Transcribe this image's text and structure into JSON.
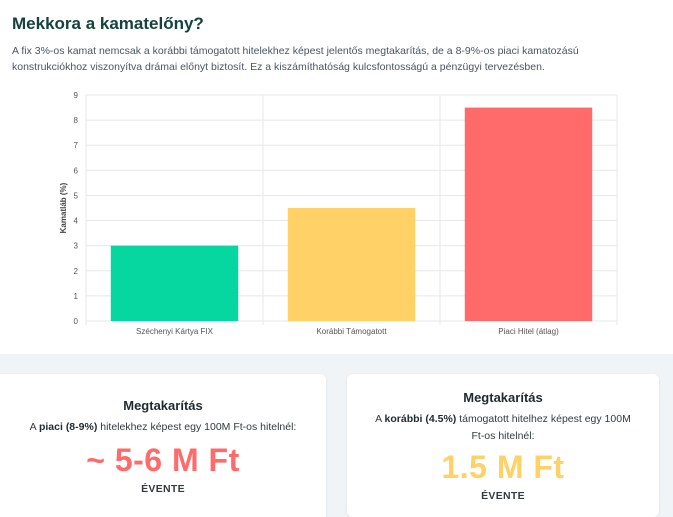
{
  "page": {
    "title": "Mekkora a kamatelőny?",
    "description": "A fix 3%-os kamat nemcsak a korábbi támogatott hitelekhez képest jelentős megtakarítás, de a 8-9%-os piaci kamatozású konstrukciókhoz viszonyítva drámai előnyt biztosít. Ez a kiszámíthatóság kulcsfontosságú a pénzügyi tervezésben."
  },
  "chart_data": {
    "type": "bar",
    "categories": [
      "Széchenyi Kártya FIX",
      "Korábbi Támogatott",
      "Piaci Hitel (átlag)"
    ],
    "values": [
      3,
      4.5,
      8.5
    ],
    "colors": [
      "#06d6a0",
      "#ffd166",
      "#ff6b6b"
    ],
    "title": "",
    "xlabel": "",
    "ylabel": "Kamatláb (%)",
    "ylim": [
      0,
      9
    ],
    "yticks": [
      0,
      1,
      2,
      3,
      4,
      5,
      6,
      7,
      8,
      9
    ],
    "grid": true,
    "legend": "none"
  },
  "cards": [
    {
      "title": "Megtakarítás",
      "text_before": "A ",
      "highlight": "piaci (8-9%)",
      "text_after": " hitelekhez képest egy 100M Ft-os hitelnél:",
      "value": "~ 5-6 M Ft",
      "period": "ÉVENTE",
      "color": "#ff6b6b"
    },
    {
      "title": "Megtakarítás",
      "text_before": "A ",
      "highlight": "korábbi (4.5%)",
      "text_after": " támogatott hitelhez képest egy 100M Ft-os hitelnél:",
      "value": "1.5 M Ft",
      "period": "ÉVENTE",
      "color": "#ffd166"
    }
  ]
}
